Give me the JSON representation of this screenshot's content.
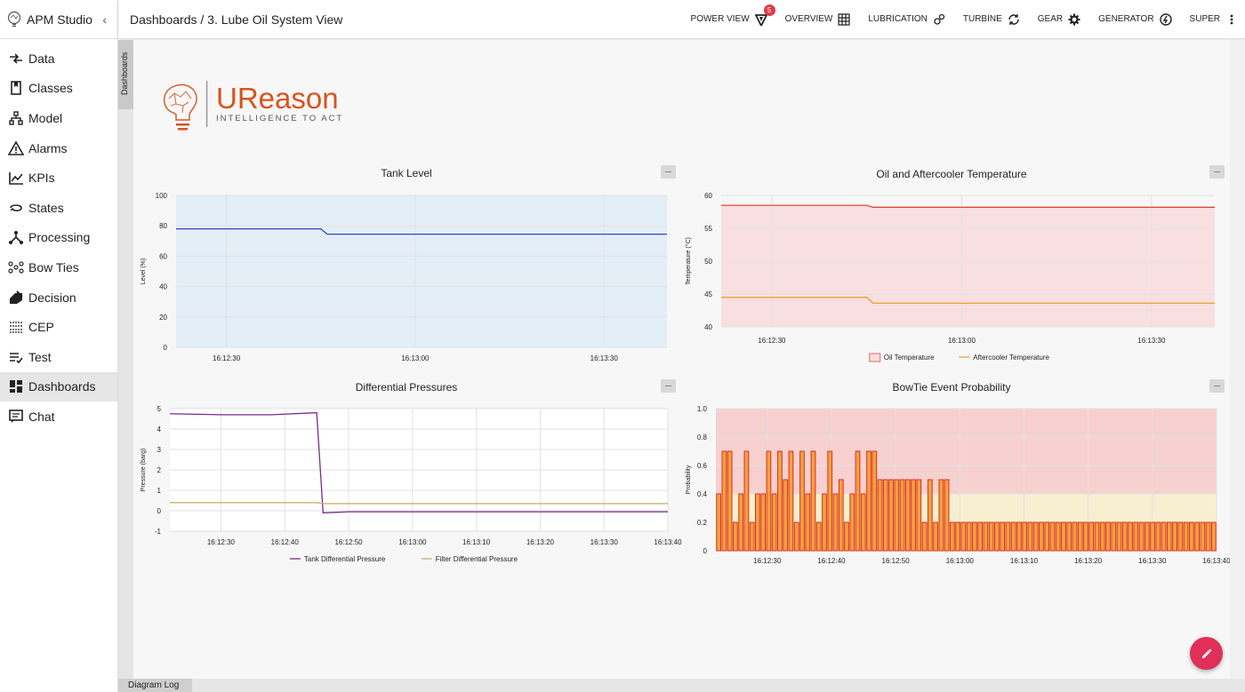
{
  "app": {
    "title": "APM Studio",
    "collapse_icon": "chevron-left-icon"
  },
  "breadcrumb": "Dashboards / 3. Lube Oil System View",
  "sidebar": {
    "items": [
      {
        "label": "Data",
        "icon": "data-arrows-icon"
      },
      {
        "label": "Classes",
        "icon": "book-icon"
      },
      {
        "label": "Model",
        "icon": "model-tree-icon"
      },
      {
        "label": "Alarms",
        "icon": "warning-icon"
      },
      {
        "label": "KPIs",
        "icon": "trend-chart-icon"
      },
      {
        "label": "States",
        "icon": "state-loop-icon"
      },
      {
        "label": "Processing",
        "icon": "processing-nodes-icon"
      },
      {
        "label": "Bow Ties",
        "icon": "bowtie-icon"
      },
      {
        "label": "Decision",
        "icon": "decision-icon"
      },
      {
        "label": "CEP",
        "icon": "cep-icon"
      },
      {
        "label": "Test",
        "icon": "test-list-icon"
      },
      {
        "label": "Dashboards",
        "icon": "dashboard-icon",
        "active": true
      },
      {
        "label": "Chat",
        "icon": "chat-icon"
      }
    ]
  },
  "topnav": [
    {
      "label": "POWER VIEW",
      "icon": "power-view-icon",
      "badge": "5"
    },
    {
      "label": "OVERVIEW",
      "icon": "grid-icon"
    },
    {
      "label": "LUBRICATION",
      "icon": "lubrication-icon"
    },
    {
      "label": "TURBINE",
      "icon": "turbine-icon"
    },
    {
      "label": "GEAR",
      "icon": "gear-icon"
    },
    {
      "label": "GENERATOR",
      "icon": "generator-icon"
    },
    {
      "label": "SUPER",
      "icon": "more-vertical-icon"
    }
  ],
  "dashboards_tab": "Dashboards",
  "logo": {
    "brand": "UReason",
    "tagline": "INTELLIGENCE TO ACT",
    "color": "#d9531e"
  },
  "footer": {
    "diagram_log": "Diagram Log"
  },
  "colors": {
    "fab": "#e0305a",
    "badge": "#e03b4a"
  },
  "chart_data": [
    {
      "id": "tank-level",
      "type": "area",
      "title": "Tank Level",
      "xlabel": "",
      "ylabel": "Level (%)",
      "ylim": [
        0,
        100
      ],
      "yticks": [
        0,
        20,
        40,
        60,
        80,
        100
      ],
      "x_tick_labels": [
        "16:12:30",
        "16:13:00",
        "16:13:30"
      ],
      "grid": true,
      "series": [
        {
          "color": "#3344bb",
          "fill": "#e3eef7",
          "x": [
            "16:12:22",
            "16:12:45",
            "16:12:46",
            "16:13:40"
          ],
          "values": [
            78,
            78,
            74.5,
            74.5
          ]
        }
      ]
    },
    {
      "id": "oil-aftercooler-temp",
      "type": "area",
      "title": "Oil and Aftercooler Temperature",
      "xlabel": "",
      "ylabel": "Temperature (°C)",
      "ylim": [
        40,
        60
      ],
      "yticks": [
        40,
        45,
        50,
        55,
        60
      ],
      "x_tick_labels": [
        "16:12:30",
        "16:13:00",
        "16:13:30"
      ],
      "grid": true,
      "legend": "bottom",
      "series": [
        {
          "name": "Oil Temperature",
          "color": "#d84a3a",
          "fill": "#f9dfe0",
          "x": [
            "16:12:22",
            "16:12:45",
            "16:12:46",
            "16:13:40"
          ],
          "values": [
            58.5,
            58.5,
            58.2,
            58.2
          ]
        },
        {
          "name": "Aftercooler Temperature",
          "color": "#f0a030",
          "x": [
            "16:12:22",
            "16:12:45",
            "16:12:46",
            "16:13:40"
          ],
          "values": [
            44.5,
            44.5,
            43.6,
            43.6
          ]
        }
      ]
    },
    {
      "id": "differential-pressures",
      "type": "line",
      "title": "Differential Pressures",
      "xlabel": "",
      "ylabel": "Pressure (barg)",
      "ylim": [
        -1,
        5
      ],
      "yticks": [
        -1,
        0,
        1,
        2,
        3,
        4,
        5
      ],
      "x_tick_labels": [
        "16:12:30",
        "16:12:40",
        "16:12:50",
        "16:13:00",
        "16:13:10",
        "16:13:20",
        "16:13:30",
        "16:13:40"
      ],
      "grid": true,
      "legend": "bottom",
      "series": [
        {
          "name": "Tank Differential Pressure",
          "color": "#7a2a90",
          "x": [
            "16:12:22",
            "16:12:30",
            "16:12:38",
            "16:12:45",
            "16:12:46",
            "16:12:50",
            "16:13:40"
          ],
          "values": [
            4.75,
            4.7,
            4.7,
            4.8,
            -0.1,
            -0.05,
            -0.05
          ]
        },
        {
          "name": "Filter Differential Pressure",
          "color": "#c8b070",
          "x": [
            "16:12:22",
            "16:12:45",
            "16:12:46",
            "16:13:40"
          ],
          "values": [
            0.4,
            0.4,
            0.35,
            0.35
          ]
        }
      ]
    },
    {
      "id": "bowtie-event-probability",
      "type": "bar",
      "title": "BowTie Event Probability",
      "xlabel": "",
      "ylabel": "Probability",
      "ylim": [
        0,
        1
      ],
      "yticks": [
        0,
        0.2,
        0.4,
        0.6,
        0.8,
        1.0
      ],
      "ytick_labels": [
        "0",
        "0.2",
        "0.4",
        "0.6",
        "0.8",
        "1.0"
      ],
      "x_tick_labels": [
        "16:12:30",
        "16:12:40",
        "16:12:50",
        "16:13:00",
        "16:13:10",
        "16:13:20",
        "16:13:30",
        "16:13:40"
      ],
      "grid": true,
      "bands": [
        {
          "from": 0,
          "to": 0.2,
          "color": "#fbe8c3"
        },
        {
          "from": 0.2,
          "to": 0.4,
          "color": "#f7f0d0"
        },
        {
          "from": 0.4,
          "to": 1.0,
          "color": "#f7d0d0"
        }
      ],
      "bar_color": "#f7a040",
      "bar_edge": "#d83020",
      "series": [
        {
          "values": [
            0.4,
            0.7,
            0.7,
            0.2,
            0.4,
            0.7,
            0.2,
            0.4,
            0.4,
            0.7,
            0.4,
            0.7,
            0.5,
            0.7,
            0.2,
            0.7,
            0.4,
            0.7,
            0.2,
            0.4,
            0.7,
            0.4,
            0.5,
            0.2,
            0.4,
            0.7,
            0.4,
            0.7,
            0.7,
            0.5,
            0.5,
            0.5,
            0.5,
            0.5,
            0.5,
            0.5,
            0.5,
            0.2,
            0.5,
            0.2,
            0.5,
            0.5,
            0.2,
            0.2,
            0.2,
            0.2,
            0.2,
            0.2,
            0.2,
            0.2,
            0.2,
            0.2,
            0.2,
            0.2,
            0.2,
            0.2,
            0.2,
            0.2,
            0.2,
            0.2,
            0.2,
            0.2,
            0.2,
            0.2,
            0.2,
            0.2,
            0.2,
            0.2,
            0.2,
            0.2,
            0.2,
            0.2,
            0.2,
            0.2,
            0.2,
            0.2,
            0.2,
            0.2,
            0.2,
            0.2,
            0.2,
            0.2,
            0.2,
            0.2,
            0.2,
            0.2,
            0.2,
            0.2,
            0.2,
            0.2
          ]
        }
      ]
    }
  ]
}
